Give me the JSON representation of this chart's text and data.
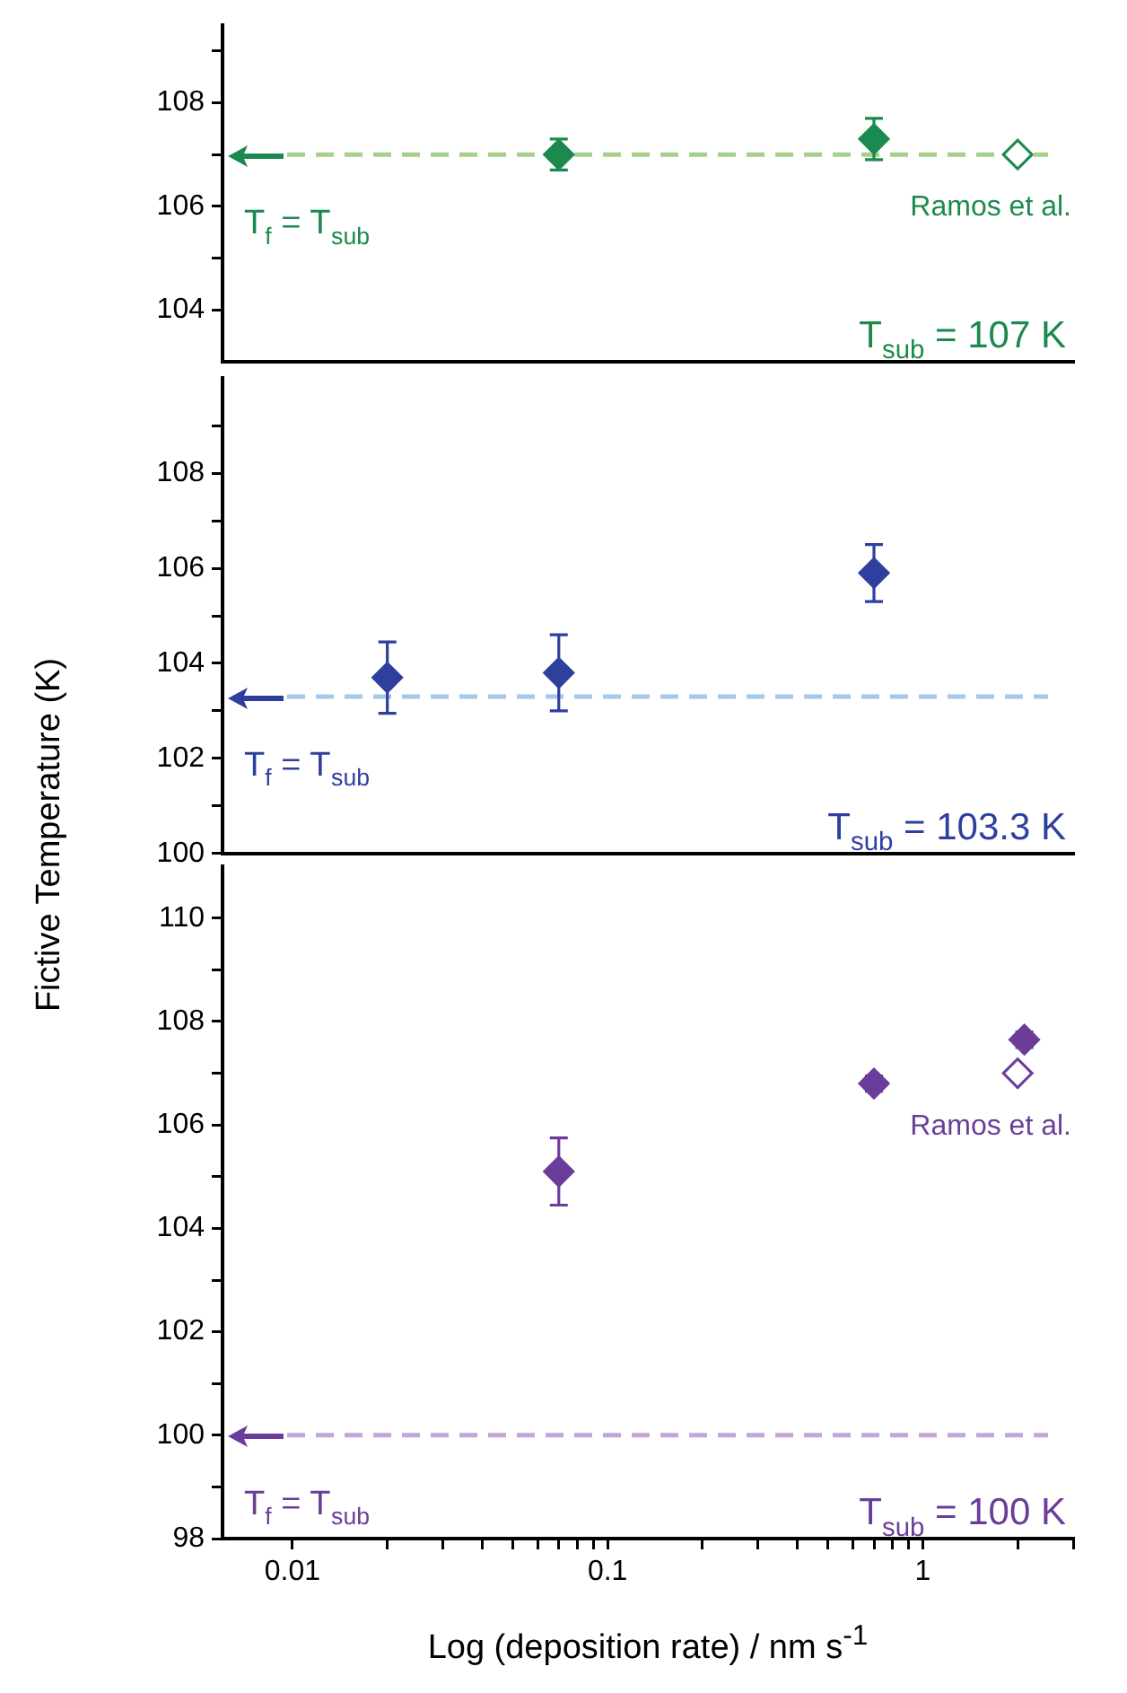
{
  "chart_data": [
    {
      "type": "scatter",
      "marker": "diamond",
      "tick_labels": "y",
      "legend": false,
      "xlim": [
        0.006,
        3
      ],
      "log": "x",
      "ylim": [
        103,
        109.5
      ],
      "yticks": [
        104,
        {
          "value": 105,
          "label": null
        },
        106,
        {
          "value": 107,
          "label": null
        },
        108,
        {
          "value": 109,
          "label": null
        }
      ],
      "series": [
        {
          "color": "#1a8a4e",
          "x": [
            0.07,
            0.7
          ],
          "values": [
            107.0,
            107.3
          ],
          "errors": [
            0.3,
            0.4
          ]
        },
        {
          "color": "#1a8a4e",
          "x": [
            2.0
          ],
          "values": [
            107.0
          ]
        }
      ],
      "ref_lines": [
        {
          "axis": "y",
          "value": 107,
          "label": "T$_{f}$ = T$_{sub}$",
          "color": "#a8d08d",
          "line_style": "dashed"
        }
      ],
      "annotations": [
        "T$_{sub}$ = 107 K",
        {
          "text": "Ramos et al.",
          "x": 2.0,
          "y": 107.0
        }
      ]
    },
    {
      "type": "scatter",
      "marker": "diamond",
      "tick_labels": "y",
      "legend": false,
      "xlim": [
        0.006,
        3
      ],
      "log": "x",
      "ylim": [
        100,
        110
      ],
      "yticks": [
        100,
        {
          "value": 101,
          "label": null
        },
        102,
        {
          "value": 103,
          "label": null
        },
        104,
        {
          "value": 105,
          "label": null
        },
        106,
        {
          "value": 107,
          "label": null
        },
        108,
        {
          "value": 109,
          "label": null
        }
      ],
      "ylabel": "Fictive Temperature (K)",
      "series": [
        {
          "color": "#2e3f9e",
          "x": [
            0.02,
            0.07,
            0.7
          ],
          "values": [
            103.7,
            103.8,
            105.9
          ],
          "errors": [
            0.75,
            0.8,
            0.6
          ]
        }
      ],
      "ref_lines": [
        {
          "axis": "y",
          "value": 103.3,
          "label": "T$_{f}$ = T$_{sub}$",
          "color": "#a6c8ec",
          "line_style": "dashed"
        }
      ],
      "annotations": [
        "T$_{sub}$ = 103.3 K"
      ]
    },
    {
      "type": "scatter",
      "marker": "diamond",
      "legend": false,
      "xlim": [
        0.006,
        3
      ],
      "log": "x",
      "xticks": [
        0.01,
        {
          "value": 0.02,
          "label": null
        },
        {
          "value": 0.03,
          "label": null
        },
        {
          "value": 0.04,
          "label": null
        },
        {
          "value": 0.05,
          "label": null
        },
        {
          "value": 0.06,
          "label": null
        },
        {
          "value": 0.07,
          "label": null
        },
        {
          "value": 0.08,
          "label": null
        },
        {
          "value": 0.09,
          "label": null
        },
        0.1,
        {
          "value": 0.2,
          "label": null
        },
        {
          "value": 0.3,
          "label": null
        },
        {
          "value": 0.4,
          "label": null
        },
        {
          "value": 0.5,
          "label": null
        },
        {
          "value": 0.6,
          "label": null
        },
        {
          "value": 0.7,
          "label": null
        },
        {
          "value": 0.8,
          "label": null
        },
        {
          "value": 0.9,
          "label": null
        },
        1,
        {
          "value": 2,
          "label": null
        },
        {
          "value": 3,
          "label": null
        }
      ],
      "ylim": [
        98,
        111
      ],
      "yticks": [
        98,
        {
          "value": 99,
          "label": null
        },
        100,
        {
          "value": 101,
          "label": null
        },
        102,
        {
          "value": 103,
          "label": null
        },
        104,
        {
          "value": 105,
          "label": null
        },
        106,
        {
          "value": 107,
          "label": null
        },
        108,
        {
          "value": 109,
          "label": null
        },
        110
      ],
      "xlabel": "Log (deposition rate) / nm s$^{-1}$",
      "series": [
        {
          "color": "#6a3d9a",
          "x": [
            0.07,
            0.7,
            2.1
          ],
          "values": [
            105.1,
            106.8,
            107.65
          ],
          "errors": [
            0.65,
            0.15,
            0.15
          ]
        },
        {
          "color": "#6a3d9a",
          "x": [
            2.0
          ],
          "values": [
            107.0
          ]
        }
      ],
      "ref_lines": [
        {
          "axis": "y",
          "value": 100,
          "label": "T$_{f}$ = T$_{sub}$",
          "color": "#c3a5d8",
          "line_style": "dashed"
        }
      ],
      "annotations": [
        "T$_{sub}$ = 100 K",
        {
          "text": "Ramos et al.",
          "x": 2.0,
          "y": 107.0
        }
      ]
    }
  ]
}
